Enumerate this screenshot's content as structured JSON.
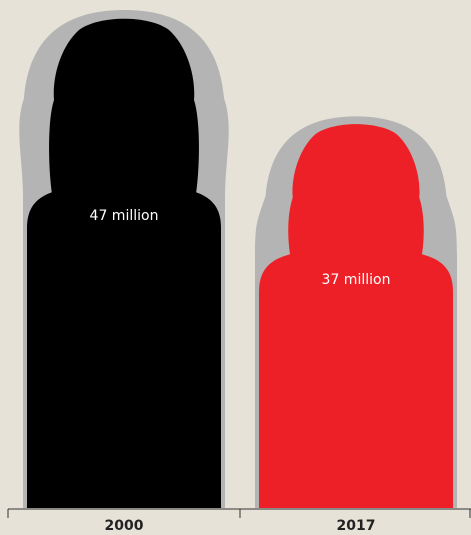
{
  "chart_data": {
    "type": "bar",
    "categories": [
      "2000",
      "2017"
    ],
    "values": [
      47,
      37
    ],
    "value_labels": [
      "47 million",
      "37 million"
    ],
    "bar_colors": [
      "#000000",
      "#ee2027"
    ],
    "label_colors": [
      "#ffffff",
      "#ffffff"
    ],
    "halo_color": "#b4b4b4",
    "axis_color": "#333333",
    "ylim": [
      0,
      47
    ],
    "grid": false,
    "legend": "none",
    "title": "",
    "xlabel": "",
    "ylabel": ""
  }
}
